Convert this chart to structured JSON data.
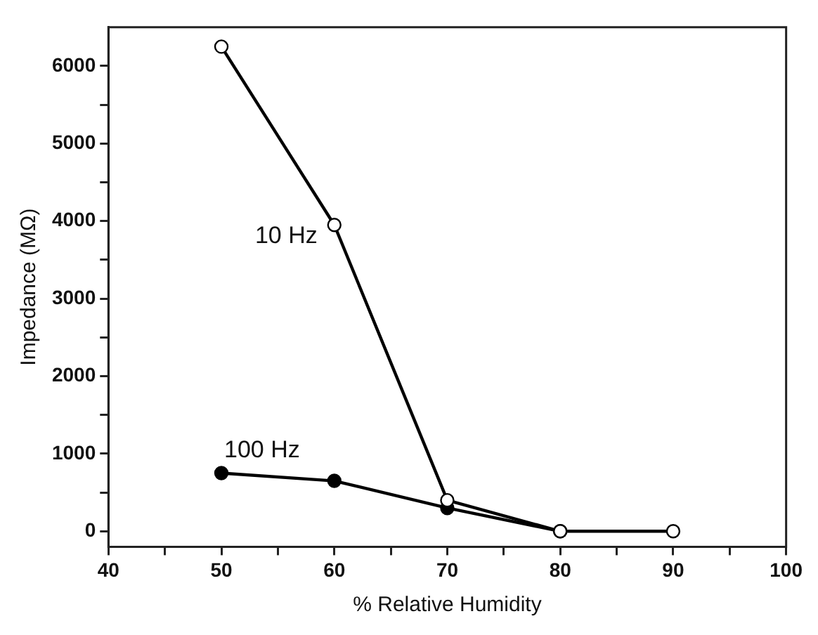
{
  "chart_data": {
    "type": "line",
    "xlabel": "% Relative Humidity",
    "ylabel": "Impedance (MΩ)",
    "x": [
      50,
      60,
      70,
      80,
      90
    ],
    "series": [
      {
        "name": "10 Hz",
        "color": "#000000",
        "values": [
          6250,
          3950,
          400,
          0,
          0
        ]
      },
      {
        "name": "100 Hz",
        "color": "#000000",
        "values": [
          750,
          650,
          300,
          0,
          null
        ]
      }
    ],
    "xlim": [
      40,
      100
    ],
    "xticks": [
      40,
      {
        "value": 45,
        "label": null
      },
      50,
      {
        "value": 55,
        "label": null
      },
      60,
      {
        "value": 65,
        "label": null
      },
      70,
      {
        "value": 75,
        "label": null
      },
      80,
      {
        "value": 85,
        "label": null
      },
      90,
      {
        "value": 95,
        "label": null
      },
      100
    ],
    "ylim": [
      -200,
      6500
    ],
    "yticks": [
      0,
      {
        "value": 500,
        "label": null
      },
      1000,
      {
        "value": 1500,
        "label": null
      },
      2000,
      {
        "value": 2500,
        "label": null
      },
      3000,
      {
        "value": 3500,
        "label": null
      },
      4000,
      {
        "value": 4500,
        "label": null
      },
      5000,
      {
        "value": 5500,
        "label": null
      },
      6000
    ],
    "grid": false,
    "legend": false,
    "marker": "circle",
    "line_style": "solid"
  }
}
